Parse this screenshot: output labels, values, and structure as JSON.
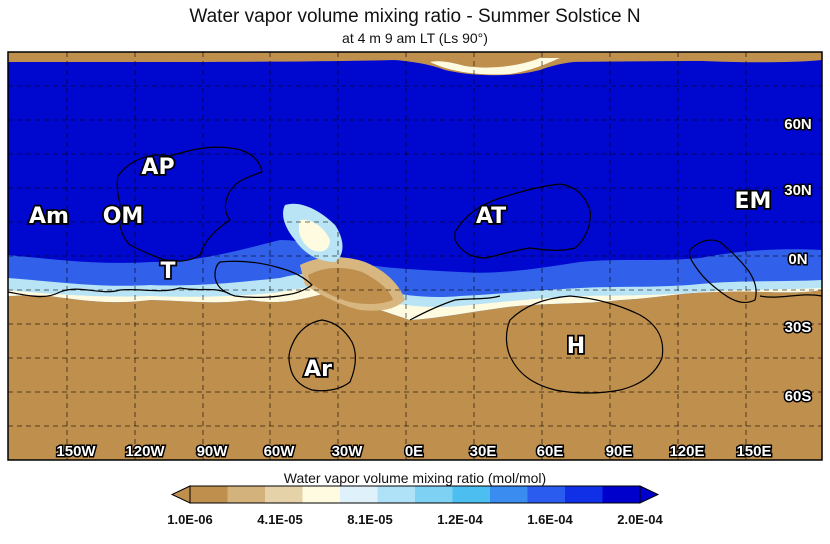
{
  "title": "Water vapor volume mixing ratio - Summer Solstice N",
  "subtitle": "at 4 m 9 am LT (Ls 90°)",
  "map": {
    "longitude_labels": [
      "150W",
      "120W",
      "90W",
      "60W",
      "30W",
      "0E",
      "30E",
      "60E",
      "90E",
      "120E",
      "150E"
    ],
    "latitude_labels": [
      "60N",
      "30N",
      "0N",
      "30S",
      "60S"
    ],
    "regions": [
      {
        "abbr": "Am"
      },
      {
        "abbr": "OM"
      },
      {
        "abbr": "AP"
      },
      {
        "abbr": "T"
      },
      {
        "abbr": "AT"
      },
      {
        "abbr": "EM"
      },
      {
        "abbr": "Ar"
      },
      {
        "abbr": "H"
      }
    ],
    "grid": "dashed",
    "colors": {
      "low": "#bf8f4e",
      "high": "#0000cc",
      "outline": "#000000",
      "label_fill": "#ffffff"
    }
  },
  "colorbar": {
    "title": "Water vapor volume mixing ratio (mol/mol)",
    "tick_labels": [
      "1.0E-06",
      "4.1E-05",
      "8.1E-05",
      "1.2E-04",
      "1.6E-04",
      "2.0E-04"
    ],
    "colors": [
      "#bf8f4e",
      "#d3b27c",
      "#e6d2a8",
      "#fffbe0",
      "#dff2fb",
      "#b0e2f7",
      "#7fd1f3",
      "#4dbef0",
      "#3a8cf0",
      "#2a5cf0",
      "#1030e8",
      "#0000cc"
    ],
    "extend": "both"
  }
}
